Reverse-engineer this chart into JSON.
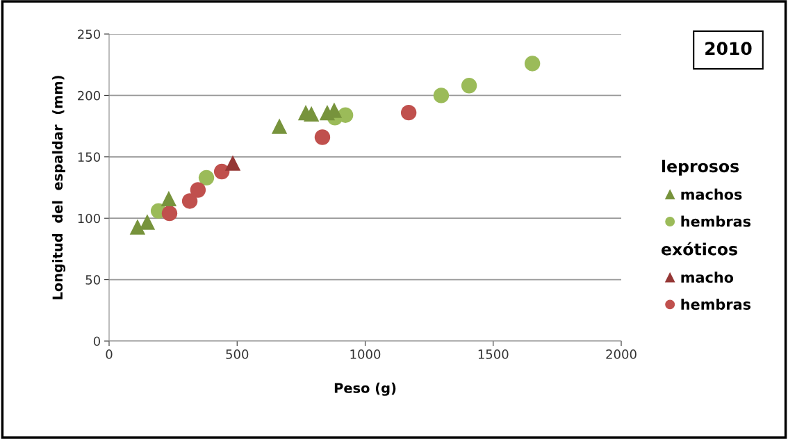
{
  "chart_data": {
    "type": "scatter",
    "xlabel": "Peso (g)",
    "ylabel": "Longitud  del  espaldar  (mm)",
    "annotations": [
      "2010",
      "leprosos",
      "exóticos"
    ],
    "xlim": [
      0,
      2000
    ],
    "xticks": [
      0,
      500,
      1000,
      1500,
      2000
    ],
    "ylim": [
      0,
      250
    ],
    "yticks": [
      0,
      50,
      100,
      150,
      200,
      250
    ],
    "grid": "y",
    "legend": "right",
    "series": [
      {
        "name": "machos",
        "color": "#77933c",
        "marker": "triangle",
        "x": [
          111,
          149,
          233,
          665,
          768,
          790,
          852,
          879
        ],
        "values": [
          93,
          97,
          116,
          175,
          186,
          185,
          186,
          188
        ]
      },
      {
        "name": "hembras",
        "color": "#9bbb59",
        "marker": "circle",
        "x": [
          193,
          380,
          882,
          923,
          1297,
          1406,
          1653
        ],
        "values": [
          106,
          133,
          182,
          184,
          200,
          208,
          226
        ]
      },
      {
        "name": "macho",
        "color": "#953735",
        "marker": "triangle",
        "x": [
          483
        ],
        "values": [
          145
        ]
      },
      {
        "name": "hembras",
        "color": "#c0504d",
        "marker": "circle",
        "x": [
          236,
          315,
          347,
          440,
          833,
          1170
        ],
        "values": [
          104,
          114,
          123,
          138,
          166,
          186
        ]
      }
    ]
  }
}
